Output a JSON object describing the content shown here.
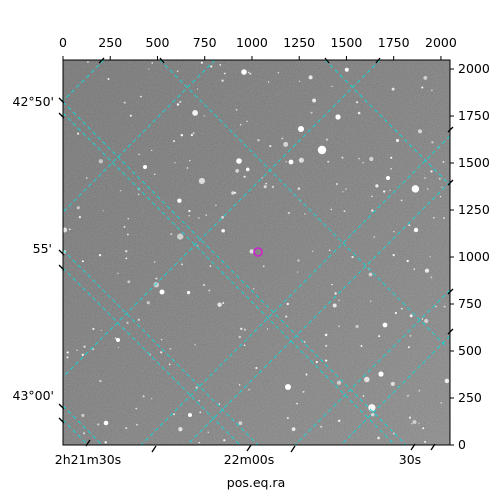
{
  "figure": {
    "xlabel": "pos.eq.ra",
    "bottom_ticks": [
      "2h21m30s",
      "22m00s",
      "30s"
    ],
    "left_ticks": [
      "42°50'",
      "55'",
      "43°00'"
    ],
    "top_pixel_ticks": [
      "0",
      "250",
      "500",
      "750",
      "1000",
      "1250",
      "1500",
      "1750",
      "2000"
    ],
    "right_pixel_ticks": [
      "2000",
      "1750",
      "1500",
      "1250",
      "1000",
      "750",
      "500",
      "250",
      "0"
    ],
    "pixel_range": [
      0,
      2048
    ],
    "colors": {
      "grid": "#19d2d2",
      "marker": "#d020d0",
      "sky": "#6b6b6b"
    }
  }
}
